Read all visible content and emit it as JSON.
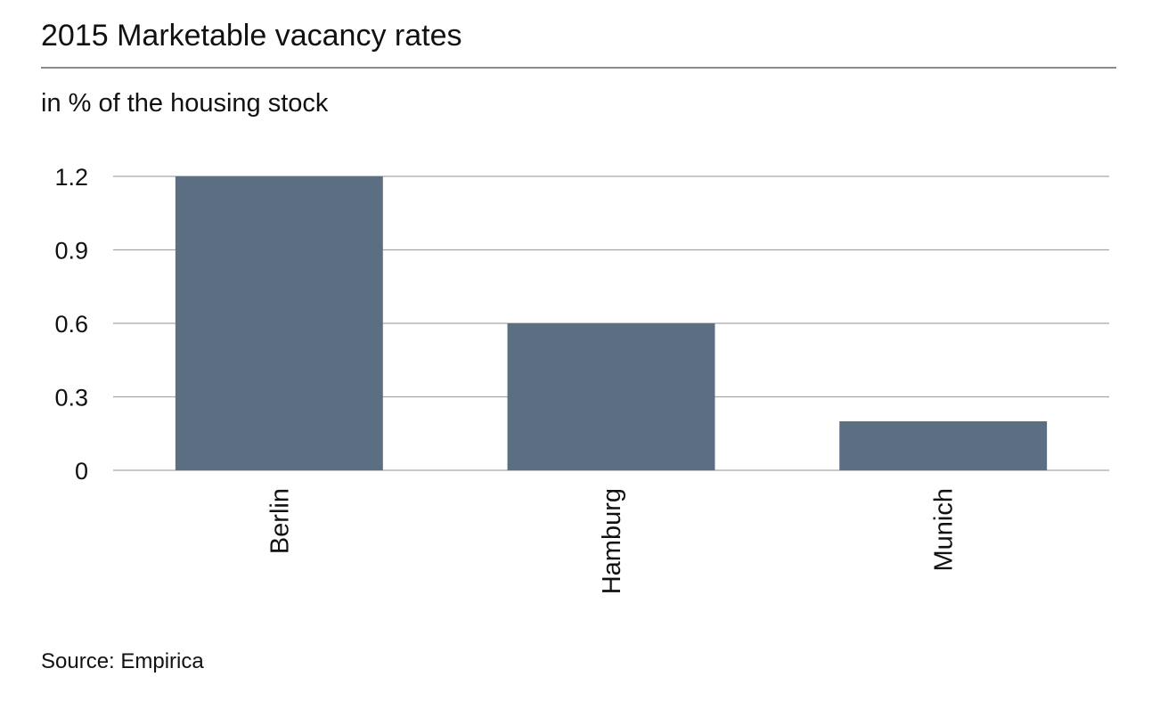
{
  "chart_data": {
    "type": "bar",
    "title": "2015 Marketable vacancy rates",
    "subtitle": "in % of the housing stock",
    "categories": [
      "Berlin",
      "Hamburg",
      "Munich"
    ],
    "values": [
      1.2,
      0.6,
      0.2
    ],
    "ylim": [
      0,
      1.2
    ],
    "yticks": [
      "0",
      "0.3",
      "0.6",
      "0.9",
      "1.2"
    ],
    "grid": true,
    "legend": "none",
    "bar_color": "#5b6e82",
    "source": "Source: Empirica"
  }
}
